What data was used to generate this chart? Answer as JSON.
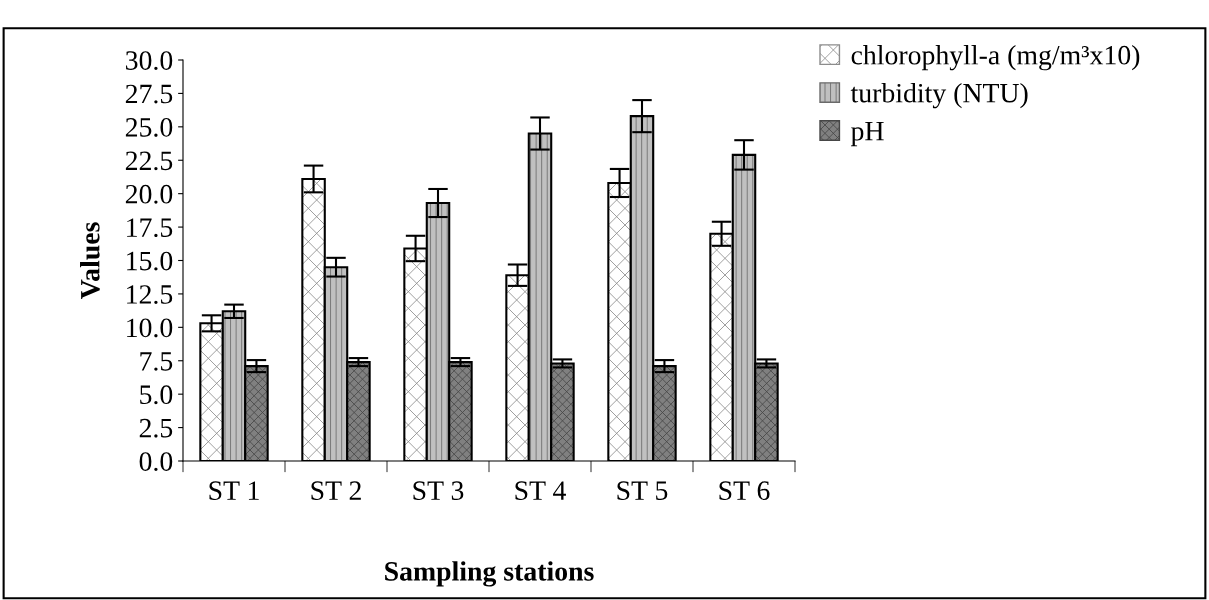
{
  "chart_data": {
    "type": "bar",
    "xlabel": "Sampling stations",
    "ylabel": "Values",
    "categories": [
      "ST 1",
      "ST 2",
      "ST 3",
      "ST 4",
      "ST 5",
      "ST 6"
    ],
    "series": [
      {
        "name": "chlorophyll-a (mg/m³x10)",
        "color": "#ffffff",
        "values": [
          10.3,
          21.1,
          15.9,
          13.9,
          20.8,
          17.0
        ],
        "errors": [
          0.6,
          1.0,
          0.95,
          0.8,
          1.05,
          0.9
        ]
      },
      {
        "name": "turbidity (NTU)",
        "color": "#c0c0c0",
        "values": [
          11.2,
          14.5,
          19.3,
          24.5,
          25.8,
          22.9
        ],
        "errors": [
          0.5,
          0.7,
          1.05,
          1.2,
          1.2,
          1.1
        ]
      },
      {
        "name": "pH",
        "color": "#808080",
        "values": [
          7.1,
          7.4,
          7.4,
          7.3,
          7.1,
          7.3
        ],
        "errors": [
          0.45,
          0.3,
          0.3,
          0.3,
          0.45,
          0.3
        ]
      }
    ],
    "ylim": [
      0,
      30
    ],
    "yticks": [
      {
        "value": 0,
        "label": "0.0"
      },
      {
        "value": 2.5,
        "label": "2.5"
      },
      {
        "value": 5,
        "label": "5.0"
      },
      {
        "value": 7.5,
        "label": "7.5"
      },
      {
        "value": 10,
        "label": "10.0"
      },
      {
        "value": 12.5,
        "label": "12.5"
      },
      {
        "value": 15,
        "label": "15.0"
      },
      {
        "value": 17.5,
        "label": "17.5"
      },
      {
        "value": 20,
        "label": "20.0"
      },
      {
        "value": 22.5,
        "label": "22.5"
      },
      {
        "value": 25,
        "label": "25.0"
      },
      {
        "value": 27.5,
        "label": "27.5"
      },
      {
        "value": 30,
        "label": "30.0"
      }
    ],
    "grid": false,
    "legend": "top right"
  }
}
